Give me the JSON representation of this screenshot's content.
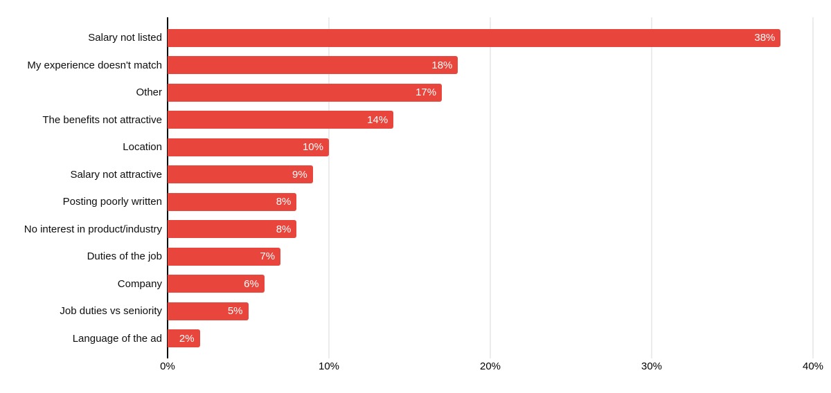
{
  "chart_data": {
    "type": "bar",
    "orientation": "horizontal",
    "title": "",
    "xlabel": "",
    "ylabel": "",
    "grid": true,
    "legend_position": "none",
    "categories": [
      "Salary not listed",
      "My experience doesn't match",
      "Other",
      "The benefits not attractive",
      "Location",
      "Salary not attractive",
      "Posting poorly written",
      "No interest in product/industry",
      "Duties of the job",
      "Company",
      "Job duties vs seniority",
      "Language of the ad"
    ],
    "values": [
      38,
      18,
      17,
      14,
      10,
      9,
      8,
      8,
      7,
      6,
      5,
      2
    ],
    "value_labels": [
      "38%",
      "18%",
      "17%",
      "14%",
      "10%",
      "9%",
      "8%",
      "8%",
      "7%",
      "6%",
      "5%",
      "2%"
    ],
    "x_ticks": [
      "0%",
      "10%",
      "20%",
      "30%",
      "40%"
    ],
    "x_tick_values": [
      0,
      10,
      20,
      30,
      40
    ],
    "xlim": [
      0,
      40
    ],
    "colors": {
      "bar": "#e8453c",
      "grid": "#d9d9d9",
      "axis": "#000000",
      "category_label": "#0d0d0d",
      "tick_label": "#000000",
      "value_label": "#ffffff",
      "background": "#ffffff"
    }
  }
}
